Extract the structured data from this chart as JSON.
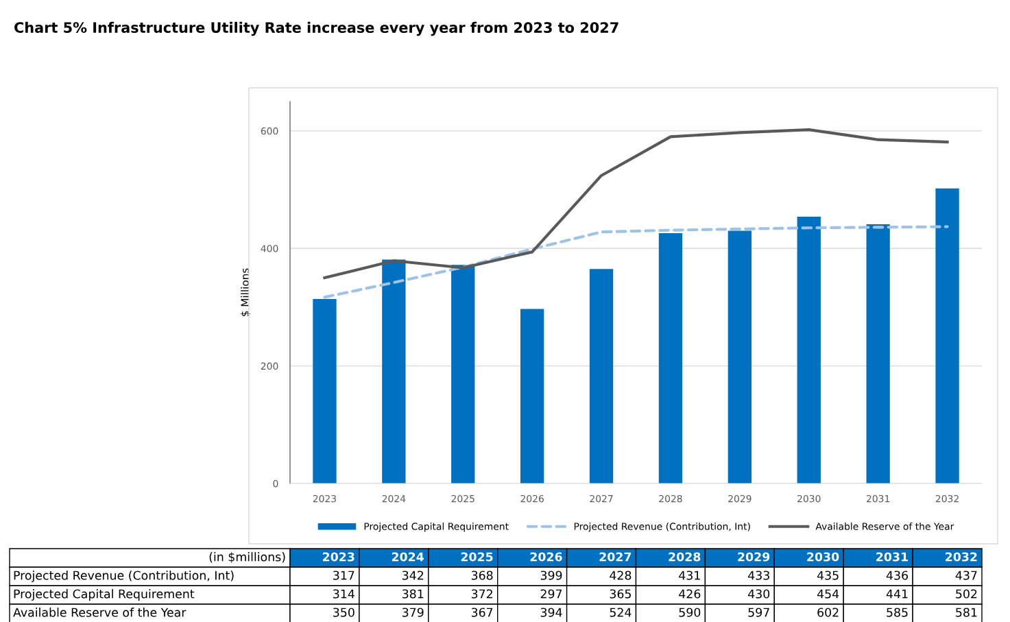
{
  "chart_data": {
    "type": "bar",
    "title": "Chart 5% Infrastructure Utility Rate increase every year from 2023 to 2027",
    "ylabel": "$ Millions",
    "categories": [
      "2023",
      "2024",
      "2025",
      "2026",
      "2027",
      "2028",
      "2029",
      "2030",
      "2031",
      "2032"
    ],
    "series": [
      {
        "name": "Projected Capital Requirement",
        "type": "bar",
        "color": "#0070c0",
        "values": [
          314,
          381,
          372,
          297,
          365,
          426,
          430,
          454,
          441,
          502
        ]
      },
      {
        "name": "Projected Revenue (Contribution, Int)",
        "type": "line",
        "line_style": "dashed",
        "color": "#9dc3e6",
        "values": [
          317,
          342,
          368,
          399,
          428,
          431,
          433,
          435,
          436,
          437
        ]
      },
      {
        "name": "Available Reserve of the Year",
        "type": "line",
        "line_style": "solid",
        "color": "#595959",
        "values": [
          350,
          379,
          367,
          394,
          524,
          590,
          597,
          602,
          585,
          581
        ]
      }
    ],
    "ylim": [
      0,
      650
    ],
    "yticks": [
      0,
      200,
      400,
      600
    ],
    "grid": "y",
    "legend": "bottom",
    "marker": "none",
    "data_labels": true,
    "annotations": [
      "(in $millions)"
    ]
  }
}
